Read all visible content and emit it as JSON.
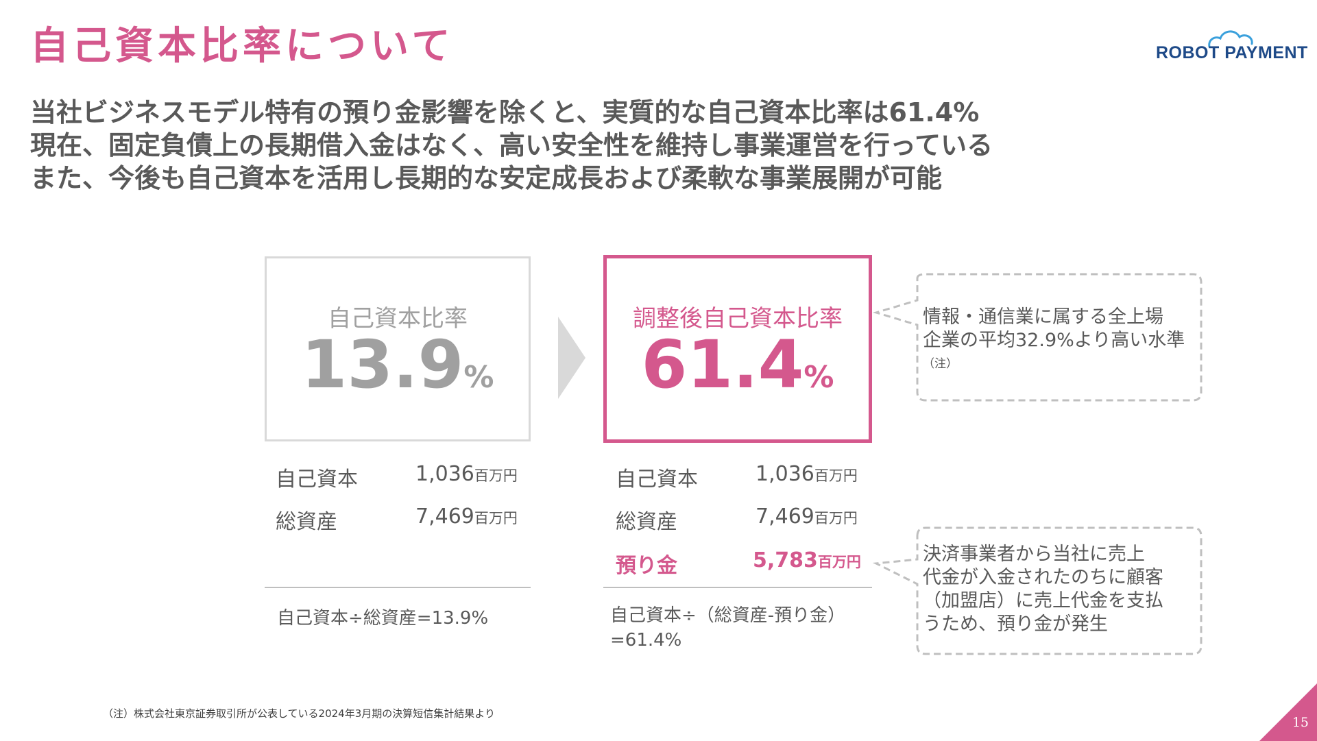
{
  "header": {
    "title": "自己資本比率について",
    "logo_text": "ROBOT PAYMENT"
  },
  "lead": {
    "lines": [
      "当社ビジネスモデル特有の預り金影響を除くと、実質的な自己資本比率は61.4%",
      "現在、固定負債上の長期借入金はなく、高い安全性を維持し事業運営を行っている",
      "また、今後も自己資本を活用し長期的な安定成長および柔軟な事業展開が可能"
    ]
  },
  "left_box": {
    "label": "自己資本比率",
    "value": "13.9",
    "unit": "%"
  },
  "right_box": {
    "label": "調整後自己資本比率",
    "value": "61.4",
    "unit": "%"
  },
  "left_table": {
    "rows": [
      {
        "label": "自己資本",
        "value": "1,036",
        "unit": "百万円"
      },
      {
        "label": "総資産",
        "value": "7,469",
        "unit": "百万円"
      }
    ],
    "formula": "自己資本÷総資産=13.9%"
  },
  "right_table": {
    "rows": [
      {
        "label": "自己資本",
        "value": "1,036",
        "unit": "百万円"
      },
      {
        "label": "総資産",
        "value": "7,469",
        "unit": "百万円"
      },
      {
        "label": "預り金",
        "value": "5,783",
        "unit": "百万円"
      }
    ],
    "formula_line1": "自己資本÷（総資産-預り金）",
    "formula_line2": "=61.4%"
  },
  "callout_top": {
    "line1": "情報・通信業に属する全上場",
    "line2": "企業の平均32.9%より高い水準",
    "note": "（注）"
  },
  "callout_bottom": {
    "line1": "決済事業者から当社に売上",
    "line2": "代金が入金されたのちに顧客",
    "line3": "（加盟店）に売上代金を支払",
    "line4": "うため、預り金が発生"
  },
  "footer": {
    "footnote": "（注）株式会社東京証券取引所が公表している2024年3月期の決算短信集計結果より",
    "page_number": "15"
  },
  "colors": {
    "accent": "#d4588d",
    "text": "#595959",
    "muted": "#a0a0a0",
    "logo": "#1e4a88"
  }
}
